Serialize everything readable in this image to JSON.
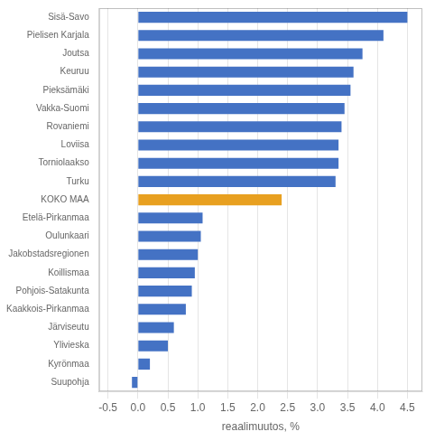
{
  "chart_data": {
    "type": "bar",
    "orientation": "horizontal",
    "categories": [
      "Suupohja",
      "Kyrönmaa",
      "Ylivieska",
      "Järviseutu",
      "Kaakkois-Pirkanmaa",
      "Pohjois-Satakunta",
      "Koillismaa",
      "Jakobstadsregionen",
      "Oulunkaari",
      "Etelä-Pirkanmaa",
      "KOKO MAA",
      "Turku",
      "Torniolaakso",
      "Loviisa",
      "Rovaniemi",
      "Vakka-Suomi",
      "Pieksämäki",
      "Keuruu",
      "Joutsa",
      "Pielisen Karjala",
      "Sisä-Savo"
    ],
    "values": [
      -0.1,
      0.2,
      0.5,
      0.6,
      0.8,
      0.9,
      0.95,
      1.0,
      1.05,
      1.08,
      2.4,
      3.3,
      3.35,
      3.35,
      3.4,
      3.45,
      3.55,
      3.6,
      3.75,
      4.1,
      4.5
    ],
    "colors": [
      "#4472c4",
      "#4472c4",
      "#4472c4",
      "#4472c4",
      "#4472c4",
      "#4472c4",
      "#4472c4",
      "#4472c4",
      "#4472c4",
      "#4472c4",
      "#e8a020",
      "#4472c4",
      "#4472c4",
      "#4472c4",
      "#4472c4",
      "#4472c4",
      "#4472c4",
      "#4472c4",
      "#4472c4",
      "#4472c4",
      "#4472c4"
    ],
    "xlabel": "reaalimuutos, %",
    "xlim": [
      -0.65,
      4.75
    ],
    "xticks": [
      -0.5,
      {
        "value": 0,
        "label": "0.0"
      },
      0.5,
      {
        "value": 1,
        "label": "1.0"
      },
      1.5,
      {
        "value": 2,
        "label": "2.0"
      },
      2.5,
      {
        "value": 3,
        "label": "3.0"
      },
      3.5,
      {
        "value": 4,
        "label": "4.0"
      },
      4.5
    ],
    "grid": "x"
  }
}
